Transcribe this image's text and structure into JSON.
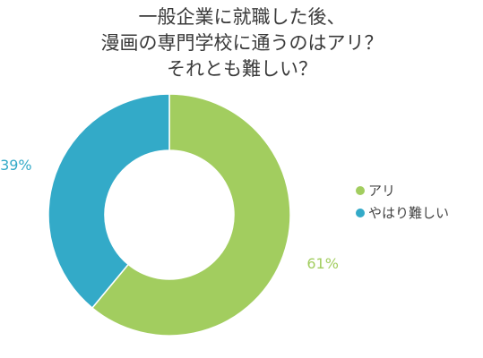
{
  "chart_data": {
    "type": "pie",
    "donut": true,
    "title_lines": [
      "一般企業に就職した後、",
      "漫画の専門学校に通うのはアリ？",
      "それとも難しい？"
    ],
    "series": [
      {
        "name": "アリ",
        "value": 61,
        "label": "61%",
        "color": "#a2cd5f"
      },
      {
        "name": "やはり難しい",
        "value": 39,
        "label": "39%",
        "color": "#33aac8"
      }
    ],
    "legend_position": "right",
    "start_angle_deg": 0,
    "direction": "clockwise"
  }
}
